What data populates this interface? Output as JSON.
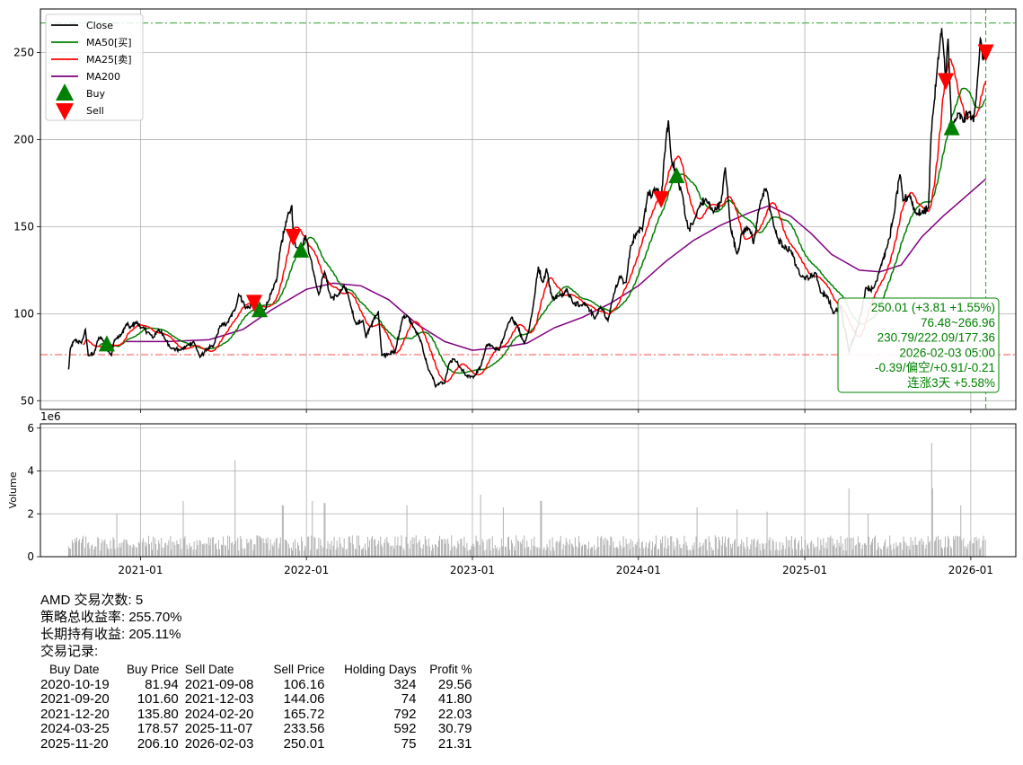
{
  "chart_data": [
    {
      "type": "line",
      "ticker": "AMD",
      "x_ticks": [
        "2021-01",
        "2022-01",
        "2023-01",
        "2024-01",
        "2025-01",
        "2026-01"
      ],
      "y_ticks": [
        50,
        100,
        150,
        200,
        250
      ],
      "ylim": [
        45,
        275
      ],
      "xlim": [
        "2020-05-26",
        "2026-04-10"
      ],
      "grid": true,
      "legend_position": "top-left",
      "legend": [
        "Close",
        "MA50[买]",
        "MA25[卖]",
        "MA200",
        "Buy",
        "Sell"
      ],
      "colors": {
        "close": "#000000",
        "ma50": "#008000",
        "ma25": "#ff0000",
        "ma200": "#800080",
        "buy": "#008000",
        "sell": "#ff0000",
        "hline_high": "#2ca02c",
        "hline_low": "#ff4d4d"
      },
      "hlines": {
        "high": 266.96,
        "low": 76.48
      },
      "vline_date": "2026-02-03",
      "close_anchors": [
        [
          "2020-07-27",
          68
        ],
        [
          "2020-07-31",
          80
        ],
        [
          "2020-08-10",
          85
        ],
        [
          "2020-08-24",
          83
        ],
        [
          "2020-09-02",
          91
        ],
        [
          "2020-09-08",
          76
        ],
        [
          "2020-09-21",
          77
        ],
        [
          "2020-10-01",
          86
        ],
        [
          "2020-10-08",
          86
        ],
        [
          "2020-10-19",
          81
        ],
        [
          "2020-10-29",
          76
        ],
        [
          "2020-11-05",
          85
        ],
        [
          "2020-11-20",
          88
        ],
        [
          "2020-12-01",
          94
        ],
        [
          "2020-12-10",
          92
        ],
        [
          "2020-12-21",
          95
        ],
        [
          "2021-01-05",
          92
        ],
        [
          "2021-01-20",
          89
        ],
        [
          "2021-01-28",
          86
        ],
        [
          "2021-02-10",
          91
        ],
        [
          "2021-02-25",
          85
        ],
        [
          "2021-03-10",
          80
        ],
        [
          "2021-03-30",
          79
        ],
        [
          "2021-04-15",
          82
        ],
        [
          "2021-04-28",
          84
        ],
        [
          "2021-05-12",
          75
        ],
        [
          "2021-05-28",
          80
        ],
        [
          "2021-06-10",
          81
        ],
        [
          "2021-06-25",
          93
        ],
        [
          "2021-07-10",
          94
        ],
        [
          "2021-07-29",
          103
        ],
        [
          "2021-08-05",
          111
        ],
        [
          "2021-08-15",
          107
        ],
        [
          "2021-08-20",
          103
        ],
        [
          "2021-09-08",
          106
        ],
        [
          "2021-09-15",
          105
        ],
        [
          "2021-09-20",
          102
        ],
        [
          "2021-09-30",
          102
        ],
        [
          "2021-10-10",
          108
        ],
        [
          "2021-10-20",
          114
        ],
        [
          "2021-10-28",
          120
        ],
        [
          "2021-11-05",
          138
        ],
        [
          "2021-11-15",
          150
        ],
        [
          "2021-11-24",
          158
        ],
        [
          "2021-11-30",
          162
        ],
        [
          "2021-12-03",
          144
        ],
        [
          "2021-12-10",
          138
        ],
        [
          "2021-12-20",
          136
        ],
        [
          "2021-12-30",
          145
        ],
        [
          "2022-01-10",
          132
        ],
        [
          "2022-01-20",
          120
        ],
        [
          "2022-01-28",
          111
        ],
        [
          "2022-02-10",
          124
        ],
        [
          "2022-02-24",
          109
        ],
        [
          "2022-03-10",
          110
        ],
        [
          "2022-03-25",
          116
        ],
        [
          "2022-04-05",
          108
        ],
        [
          "2022-04-20",
          94
        ],
        [
          "2022-05-05",
          96
        ],
        [
          "2022-05-12",
          86
        ],
        [
          "2022-05-20",
          92
        ],
        [
          "2022-06-08",
          101
        ],
        [
          "2022-06-16",
          76
        ],
        [
          "2022-06-30",
          77
        ],
        [
          "2022-07-15",
          78
        ],
        [
          "2022-08-01",
          98
        ],
        [
          "2022-08-10",
          99
        ],
        [
          "2022-08-25",
          92
        ],
        [
          "2022-09-10",
          84
        ],
        [
          "2022-09-26",
          68
        ],
        [
          "2022-10-05",
          64
        ],
        [
          "2022-10-12",
          58
        ],
        [
          "2022-10-20",
          60
        ],
        [
          "2022-11-01",
          60
        ],
        [
          "2022-11-10",
          71
        ],
        [
          "2022-11-22",
          74
        ],
        [
          "2022-12-05",
          69
        ],
        [
          "2022-12-20",
          64
        ],
        [
          "2022-12-29",
          64
        ],
        [
          "2023-01-05",
          64
        ],
        [
          "2023-01-20",
          70
        ],
        [
          "2023-02-01",
          82
        ],
        [
          "2023-02-15",
          81
        ],
        [
          "2023-03-01",
          79
        ],
        [
          "2023-03-15",
          90
        ],
        [
          "2023-03-29",
          98
        ],
        [
          "2023-04-10",
          93
        ],
        [
          "2023-04-25",
          83
        ],
        [
          "2023-05-05",
          90
        ],
        [
          "2023-05-18",
          110
        ],
        [
          "2023-05-26",
          127
        ],
        [
          "2023-06-05",
          118
        ],
        [
          "2023-06-13",
          126
        ],
        [
          "2023-06-25",
          109
        ],
        [
          "2023-07-10",
          110
        ],
        [
          "2023-07-28",
          114
        ],
        [
          "2023-08-10",
          106
        ],
        [
          "2023-08-28",
          105
        ],
        [
          "2023-09-10",
          105
        ],
        [
          "2023-09-27",
          97
        ],
        [
          "2023-10-10",
          104
        ],
        [
          "2023-10-26",
          96
        ],
        [
          "2023-11-05",
          108
        ],
        [
          "2023-11-20",
          121
        ],
        [
          "2023-12-05",
          118
        ],
        [
          "2023-12-15",
          139
        ],
        [
          "2023-12-29",
          147
        ],
        [
          "2024-01-10",
          148
        ],
        [
          "2024-01-22",
          170
        ],
        [
          "2024-01-30",
          167
        ],
        [
          "2024-02-10",
          172
        ],
        [
          "2024-02-20",
          165
        ],
        [
          "2024-02-28",
          192
        ],
        [
          "2024-03-07",
          211
        ],
        [
          "2024-03-13",
          190
        ],
        [
          "2024-03-25",
          179
        ],
        [
          "2024-04-05",
          170
        ],
        [
          "2024-04-20",
          148
        ],
        [
          "2024-05-01",
          152
        ],
        [
          "2024-05-15",
          162
        ],
        [
          "2024-05-28",
          166
        ],
        [
          "2024-06-10",
          160
        ],
        [
          "2024-06-20",
          160
        ],
        [
          "2024-07-01",
          164
        ],
        [
          "2024-07-10",
          184
        ],
        [
          "2024-07-22",
          149
        ],
        [
          "2024-08-05",
          134
        ],
        [
          "2024-08-15",
          146
        ],
        [
          "2024-09-01",
          150
        ],
        [
          "2024-09-10",
          140
        ],
        [
          "2024-09-26",
          165
        ],
        [
          "2024-10-08",
          172
        ],
        [
          "2024-10-20",
          156
        ],
        [
          "2024-11-01",
          144
        ],
        [
          "2024-11-15",
          138
        ],
        [
          "2024-12-01",
          137
        ],
        [
          "2024-12-15",
          126
        ],
        [
          "2024-12-30",
          121
        ],
        [
          "2025-01-10",
          120
        ],
        [
          "2025-01-25",
          124
        ],
        [
          "2025-02-05",
          112
        ],
        [
          "2025-02-20",
          110
        ],
        [
          "2025-03-05",
          100
        ],
        [
          "2025-03-20",
          104
        ],
        [
          "2025-04-04",
          85
        ],
        [
          "2025-04-08",
          78
        ],
        [
          "2025-04-20",
          87
        ],
        [
          "2025-05-05",
          100
        ],
        [
          "2025-05-15",
          115
        ],
        [
          "2025-06-01",
          114
        ],
        [
          "2025-06-15",
          126
        ],
        [
          "2025-07-01",
          138
        ],
        [
          "2025-07-15",
          155
        ],
        [
          "2025-07-29",
          180
        ],
        [
          "2025-08-05",
          165
        ],
        [
          "2025-08-20",
          168
        ],
        [
          "2025-09-01",
          158
        ],
        [
          "2025-09-15",
          158
        ],
        [
          "2025-09-30",
          161
        ],
        [
          "2025-10-06",
          204
        ],
        [
          "2025-10-10",
          215
        ],
        [
          "2025-10-17",
          234
        ],
        [
          "2025-10-24",
          252
        ],
        [
          "2025-10-29",
          264
        ],
        [
          "2025-11-07",
          234
        ],
        [
          "2025-11-12",
          258
        ],
        [
          "2025-11-20",
          206
        ],
        [
          "2025-12-05",
          215
        ],
        [
          "2025-12-15",
          210
        ],
        [
          "2025-12-29",
          216
        ],
        [
          "2026-01-07",
          210
        ],
        [
          "2026-01-15",
          232
        ],
        [
          "2026-01-22",
          258
        ],
        [
          "2026-01-28",
          246
        ],
        [
          "2026-02-03",
          250
        ]
      ],
      "ma200_anchors": [
        [
          "2020-12-01",
          84
        ],
        [
          "2021-03-01",
          84
        ],
        [
          "2021-06-01",
          85
        ],
        [
          "2021-08-15",
          91
        ],
        [
          "2021-10-15",
          102
        ],
        [
          "2022-01-01",
          114
        ],
        [
          "2022-03-01",
          117.5
        ],
        [
          "2022-05-01",
          116
        ],
        [
          "2022-07-01",
          108
        ],
        [
          "2022-09-01",
          94
        ],
        [
          "2022-11-01",
          84
        ],
        [
          "2023-01-01",
          79
        ],
        [
          "2023-03-01",
          80.5
        ],
        [
          "2023-05-01",
          83
        ],
        [
          "2023-07-01",
          92
        ],
        [
          "2023-09-01",
          98
        ],
        [
          "2023-11-01",
          106
        ],
        [
          "2024-01-01",
          116
        ],
        [
          "2024-03-01",
          130
        ],
        [
          "2024-05-01",
          142
        ],
        [
          "2024-07-01",
          151
        ],
        [
          "2024-09-01",
          158
        ],
        [
          "2024-10-15",
          162
        ],
        [
          "2024-12-01",
          156
        ],
        [
          "2025-01-15",
          146
        ],
        [
          "2025-03-01",
          134
        ],
        [
          "2025-05-01",
          125
        ],
        [
          "2025-06-15",
          124
        ],
        [
          "2025-08-01",
          128
        ],
        [
          "2025-09-15",
          144
        ],
        [
          "2025-11-01",
          156
        ],
        [
          "2025-12-15",
          166
        ],
        [
          "2026-02-03",
          177.36
        ]
      ],
      "buy_signals": [
        [
          "2020-10-19",
          81.94
        ],
        [
          "2021-09-20",
          101.6
        ],
        [
          "2021-12-20",
          135.8
        ],
        [
          "2024-03-25",
          178.57
        ],
        [
          "2025-11-20",
          206.1
        ]
      ],
      "sell_signals": [
        [
          "2021-09-08",
          106.16
        ],
        [
          "2021-12-03",
          144.06
        ],
        [
          "2024-02-20",
          165.72
        ],
        [
          "2025-11-07",
          233.56
        ],
        [
          "2026-02-03",
          250.01
        ]
      ],
      "info_box": [
        "250.01 (+3.81 +1.55%)",
        "76.48~266.96",
        "230.79/222.09/177.36",
        "2026-02-03 05:00",
        "-0.39/偏空/+0.91/-0.21",
        "连涨3天 +5.58%"
      ]
    },
    {
      "type": "bar",
      "ylabel": "Volume",
      "scale_label": "1e6",
      "y_ticks": [
        0,
        2,
        4,
        6
      ],
      "ylim": [
        0,
        6.2
      ],
      "color": "#b3b3b3",
      "spikes": [
        [
          "2021-07-28",
          4.5
        ],
        [
          "2020-11-10",
          2.0
        ],
        [
          "2021-04-05",
          2.6
        ],
        [
          "2021-11-10",
          2.4
        ],
        [
          "2022-01-15",
          2.6
        ],
        [
          "2022-02-10",
          2.5
        ],
        [
          "2022-08-10",
          2.4
        ],
        [
          "2023-01-20",
          2.9
        ],
        [
          "2023-03-10",
          2.3
        ],
        [
          "2023-06-01",
          2.6
        ],
        [
          "2023-09-10",
          2.2
        ],
        [
          "2024-03-10",
          2.5
        ],
        [
          "2024-05-10",
          2.3
        ],
        [
          "2024-08-05",
          2.2
        ],
        [
          "2024-10-10",
          2.1
        ],
        [
          "2024-12-01",
          1.9
        ],
        [
          "2025-04-08",
          3.2
        ],
        [
          "2025-05-20",
          2.0
        ],
        [
          "2025-08-10",
          2.1
        ],
        [
          "2025-10-07",
          5.3
        ],
        [
          "2025-10-10",
          3.2
        ],
        [
          "2025-12-10",
          2.4
        ]
      ],
      "base_level": 0.8
    }
  ],
  "summary": {
    "line1": "AMD 交易次数: 5",
    "line2": "策略总收益率: 255.70%",
    "line3": "长期持有收益: 205.11%",
    "line4": "交易记录:"
  },
  "trade_table": {
    "headers": [
      "Buy Date",
      "Buy Price",
      "Sell Date",
      "Sell Price",
      "Holding Days",
      "Profit %"
    ],
    "rows": [
      [
        "2020-10-19",
        "81.94",
        "2021-09-08",
        "106.16",
        "324",
        "29.56"
      ],
      [
        "2021-09-20",
        "101.60",
        "2021-12-03",
        "144.06",
        "74",
        "41.80"
      ],
      [
        "2021-12-20",
        "135.80",
        "2024-02-20",
        "165.72",
        "792",
        "22.03"
      ],
      [
        "2024-03-25",
        "178.57",
        "2025-11-07",
        "233.56",
        "592",
        "30.79"
      ],
      [
        "2025-11-20",
        "206.10",
        "2026-02-03",
        "250.01",
        "75",
        "21.31"
      ]
    ]
  }
}
